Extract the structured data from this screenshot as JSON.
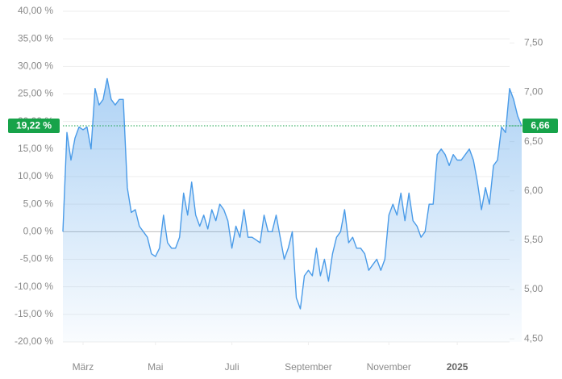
{
  "chart_data": {
    "type": "line",
    "xlim": [
      0,
      111
    ],
    "xticks": [
      {
        "value": 5,
        "label": "März"
      },
      {
        "value": 23,
        "label": "Mai"
      },
      {
        "value": 42,
        "label": "Juli"
      },
      {
        "value": 61,
        "label": "September"
      },
      {
        "value": 81,
        "label": "November"
      },
      {
        "value": 98,
        "label": "2025",
        "emphasis": true
      }
    ],
    "ylim": [
      -20,
      40
    ],
    "yticks": [
      {
        "value": 40,
        "label": "40,00 %"
      },
      {
        "value": 35,
        "label": "35,00 %"
      },
      {
        "value": 30,
        "label": "30,00 %"
      },
      {
        "value": 25,
        "label": "25,00 %"
      },
      {
        "value": 20,
        "label": "20,00 %"
      },
      {
        "value": 15,
        "label": "15,00 %"
      },
      {
        "value": 10,
        "label": "10,00 %"
      },
      {
        "value": 5,
        "label": "5,00 %"
      },
      {
        "value": 0,
        "label": "0,00 %"
      },
      {
        "value": -5,
        "label": "-5,00 %"
      },
      {
        "value": -10,
        "label": "-10,00 %"
      },
      {
        "value": -15,
        "label": "-15,00 %"
      },
      {
        "value": -20,
        "label": "-20,00 %"
      }
    ],
    "y2lim": [
      4.469,
      7.821
    ],
    "y2ticks": [
      {
        "value": 7.5,
        "label": "7,50"
      },
      {
        "value": 7,
        "label": "7,00"
      },
      {
        "value": 6.5,
        "label": "6,50"
      },
      {
        "value": 6,
        "label": "6,00"
      },
      {
        "value": 5.5,
        "label": "5,50"
      },
      {
        "value": 5,
        "label": "5,00"
      },
      {
        "value": 4.5,
        "label": "4,50"
      }
    ],
    "grid": true,
    "series": [
      {
        "color": "#4a9be8",
        "values": [
          0,
          18,
          13,
          17,
          19,
          18.5,
          19,
          15,
          26,
          23,
          24,
          27.8,
          24,
          23,
          24,
          24,
          8,
          3.5,
          4,
          1,
          0,
          -1,
          -4,
          -4.5,
          -3,
          3,
          -2,
          -3,
          -3,
          -1,
          7,
          3,
          9,
          3,
          1,
          3,
          0.5,
          4,
          2,
          5,
          4,
          2,
          -3,
          1,
          -1,
          4,
          -1,
          -1,
          -1.5,
          -2,
          3,
          0,
          0,
          3,
          -1,
          -5,
          -3,
          0,
          -12,
          -14,
          -8,
          -7,
          -8,
          -3,
          -8,
          -5,
          -9,
          -4,
          -1,
          0,
          4,
          -2,
          -1,
          -3,
          -3,
          -4,
          -7,
          -6,
          -5,
          -7,
          -5,
          3,
          5,
          3,
          7,
          2,
          7,
          2,
          1,
          -1,
          0,
          5,
          5,
          14,
          15,
          14,
          12,
          14,
          13,
          13,
          14,
          15,
          13,
          9,
          4,
          8,
          5,
          12,
          13,
          19,
          18,
          26,
          24,
          21,
          19.22
        ]
      }
    ],
    "annotations": [
      {
        "value": 19.22,
        "label": "19,22 %",
        "color": "#17a34a"
      },
      {
        "value": 6.66,
        "label": "6,66",
        "axis": "y2",
        "color": "#17a34a"
      }
    ]
  }
}
